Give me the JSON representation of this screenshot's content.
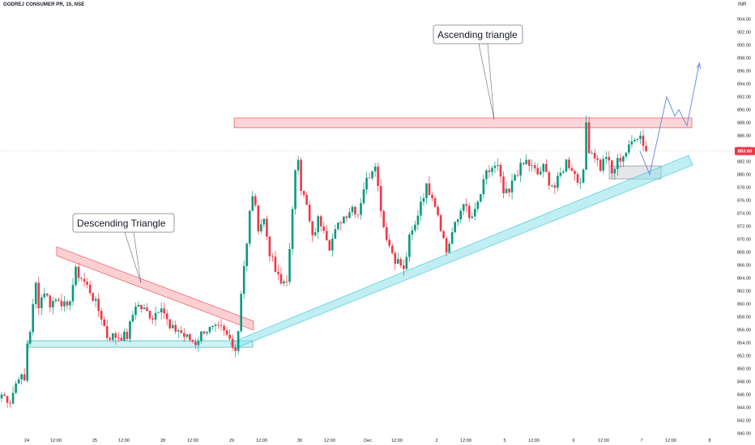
{
  "header": {
    "symbol_title": "GODREJ CONSUMER PR, 15, NSE",
    "currency": "INR"
  },
  "price_tag": {
    "value": "883.60",
    "color": "#f23645"
  },
  "colors": {
    "up": "#089981",
    "down": "#f23645",
    "resistance_zone": "#f7a1a8",
    "support_zone": "#8ee0ea",
    "forecast_line": "#6f8ce8"
  },
  "chart_data": {
    "type": "candlestick",
    "title": "GODREJ CONSUMER PR, 15, NSE",
    "ylabel": "INR",
    "ylim": [
      839,
      906
    ],
    "y_ticks": [
      "840.00",
      "842.00",
      "844.00",
      "846.00",
      "848.00",
      "850.00",
      "852.00",
      "854.00",
      "856.00",
      "858.00",
      "860.00",
      "862.00",
      "864.00",
      "866.00",
      "868.00",
      "870.00",
      "872.00",
      "874.00",
      "876.00",
      "878.00",
      "880.00",
      "882.00",
      "884.00",
      "886.00",
      "888.00",
      "890.00",
      "892.00",
      "894.00",
      "896.00",
      "898.00",
      "900.00",
      "902.00",
      "904.00"
    ],
    "x_ticks": [
      "24",
      "12:00",
      "25",
      "12:00",
      "28",
      "12:00",
      "29",
      "12:00",
      "30",
      "12:00",
      "Dec",
      "12:00",
      "2",
      "12:00",
      "5",
      "12:00",
      "6",
      "12:00",
      "7",
      "12:00",
      "8"
    ],
    "last_price": 883.6,
    "grid": false,
    "candle_path": [
      [
        0,
        846
      ],
      [
        3,
        845
      ],
      [
        6,
        849
      ],
      [
        8,
        848
      ],
      [
        9,
        854
      ],
      [
        10,
        856
      ],
      [
        12,
        863
      ],
      [
        13,
        860
      ],
      [
        15,
        862
      ],
      [
        17,
        860
      ],
      [
        20,
        861
      ],
      [
        23,
        859
      ],
      [
        26,
        865
      ],
      [
        28,
        864
      ],
      [
        31,
        862
      ],
      [
        35,
        858
      ],
      [
        37,
        855
      ],
      [
        41,
        855
      ],
      [
        44,
        855
      ],
      [
        47,
        860
      ],
      [
        50,
        859
      ],
      [
        53,
        858
      ],
      [
        56,
        860
      ],
      [
        59,
        856
      ],
      [
        62,
        856
      ],
      [
        64,
        855
      ],
      [
        68,
        854
      ],
      [
        71,
        856
      ],
      [
        74,
        856
      ],
      [
        77,
        856
      ],
      [
        79,
        855
      ],
      [
        81,
        854
      ],
      [
        82,
        853
      ],
      [
        83,
        856
      ],
      [
        84,
        862
      ],
      [
        85,
        866
      ],
      [
        86,
        869
      ],
      [
        87,
        874
      ],
      [
        88,
        877
      ],
      [
        90,
        872
      ],
      [
        92,
        873
      ],
      [
        94,
        868
      ],
      [
        96,
        865
      ],
      [
        98,
        863
      ],
      [
        100,
        864
      ],
      [
        101,
        868
      ],
      [
        102,
        874
      ],
      [
        103,
        881
      ],
      [
        104,
        883
      ],
      [
        105,
        878
      ],
      [
        107,
        875
      ],
      [
        109,
        870
      ],
      [
        111,
        873
      ],
      [
        113,
        872
      ],
      [
        115,
        869
      ],
      [
        117,
        871
      ],
      [
        119,
        873
      ],
      [
        121,
        874
      ],
      [
        123,
        875
      ],
      [
        125,
        874
      ],
      [
        127,
        878
      ],
      [
        129,
        880
      ],
      [
        131,
        882
      ],
      [
        132,
        878
      ],
      [
        134,
        872
      ],
      [
        136,
        869
      ],
      [
        138,
        867
      ],
      [
        140,
        866
      ],
      [
        141,
        865
      ],
      [
        143,
        870
      ],
      [
        145,
        872
      ],
      [
        147,
        876
      ],
      [
        149,
        878
      ],
      [
        151,
        877
      ],
      [
        153,
        874
      ],
      [
        155,
        870
      ],
      [
        156,
        868
      ],
      [
        158,
        871
      ],
      [
        160,
        873
      ],
      [
        162,
        876
      ],
      [
        164,
        873
      ],
      [
        166,
        874
      ],
      [
        168,
        877
      ],
      [
        170,
        880
      ],
      [
        172,
        881
      ],
      [
        174,
        881
      ],
      [
        176,
        877
      ],
      [
        178,
        877
      ],
      [
        180,
        880
      ],
      [
        182,
        881
      ],
      [
        184,
        882
      ],
      [
        186,
        881
      ],
      [
        188,
        880
      ],
      [
        190,
        881
      ],
      [
        192,
        879
      ],
      [
        194,
        878
      ],
      [
        196,
        880
      ],
      [
        198,
        882
      ],
      [
        200,
        881
      ],
      [
        202,
        879
      ],
      [
        204,
        880
      ],
      [
        205,
        888
      ],
      [
        206,
        884
      ],
      [
        208,
        883
      ],
      [
        210,
        881
      ],
      [
        212,
        883
      ],
      [
        214,
        880
      ],
      [
        216,
        882
      ],
      [
        218,
        883
      ],
      [
        220,
        884
      ],
      [
        222,
        886
      ],
      [
        224,
        886
      ],
      [
        226,
        883.6
      ]
    ],
    "annotations": [
      {
        "type": "text_box",
        "text": "Descending Triangle"
      },
      {
        "type": "text_box",
        "text": "Ascending triangle"
      },
      {
        "type": "zone",
        "name": "resistance",
        "y": [
          887.4,
          888.7
        ]
      },
      {
        "type": "zone",
        "name": "support",
        "y": [
          853.3,
          854.3
        ]
      },
      {
        "type": "zone",
        "name": "retest",
        "y": [
          879.4,
          881.3
        ]
      },
      {
        "type": "channel",
        "name": "descending-upper"
      },
      {
        "type": "channel",
        "name": "ascending-lower"
      },
      {
        "type": "forecast",
        "name": "projected-path",
        "y": [
          883.6,
          880,
          892,
          889,
          890,
          887.5,
          897
        ]
      }
    ]
  }
}
